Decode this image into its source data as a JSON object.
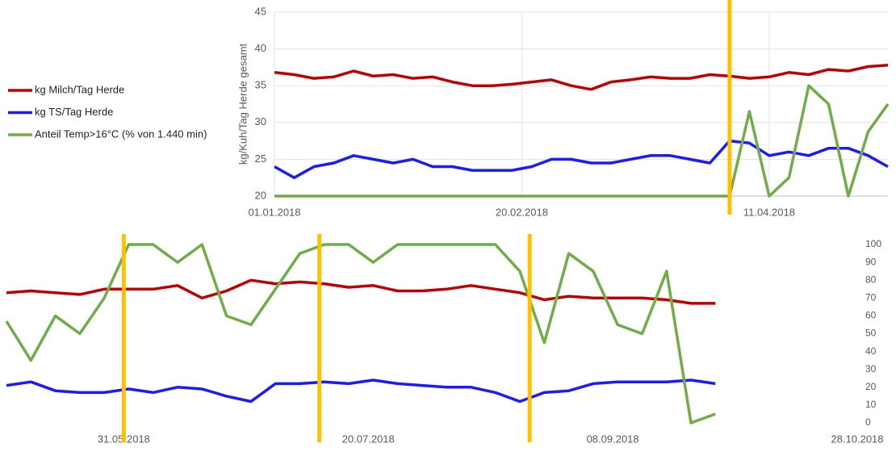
{
  "chart_data": [
    {
      "type": "line",
      "y_label": "kg/Kuh/Tag Herde gesamt",
      "x": [
        "01.01.2018",
        "05.01.2018",
        "09.01.2018",
        "13.01.2018",
        "17.01.2018",
        "21.01.2018",
        "25.01.2018",
        "29.01.2018",
        "02.02.2018",
        "06.02.2018",
        "10.02.2018",
        "14.02.2018",
        "18.02.2018",
        "22.02.2018",
        "26.02.2018",
        "02.03.2018",
        "06.03.2018",
        "10.03.2018",
        "14.03.2018",
        "18.03.2018",
        "22.03.2018",
        "26.03.2018",
        "30.03.2018",
        "03.04.2018",
        "07.04.2018",
        "11.04.2018",
        "15.04.2018",
        "19.04.2018",
        "23.04.2018",
        "27.04.2018",
        "01.05.2018",
        "05.05.2018"
      ],
      "series": [
        {
          "name": "kg Milch/Tag Herde",
          "color": "#c00000",
          "values": [
            36.8,
            36.5,
            36.0,
            36.2,
            37.0,
            36.3,
            36.5,
            36.0,
            36.2,
            35.5,
            35.0,
            35.0,
            35.2,
            35.5,
            35.8,
            35.0,
            34.5,
            35.5,
            35.8,
            36.2,
            36.0,
            36.0,
            36.5,
            36.3,
            36.0,
            36.2,
            36.8,
            36.5,
            37.2,
            37.0,
            37.6,
            37.8
          ]
        },
        {
          "name": "kg TS/Tag Herde",
          "color": "#1a1aff",
          "values": [
            24,
            22.5,
            24,
            24.5,
            25.5,
            25,
            24.5,
            25,
            24,
            24,
            23.5,
            23.5,
            23.5,
            24,
            25,
            25,
            24.5,
            24.5,
            25,
            25.5,
            25.5,
            25,
            24.5,
            27.5,
            27.2,
            25.5,
            26,
            25.5,
            26.5,
            26.5,
            25.5,
            24
          ]
        },
        {
          "name": "Anteil Temp>16°C (% von 1.440 min)",
          "color": "#70ad47",
          "axis": "y2",
          "values": [
            0,
            0,
            0,
            0,
            0,
            0,
            0,
            0,
            0,
            0,
            0,
            0,
            0,
            0,
            0,
            0,
            0,
            0,
            0,
            0,
            0,
            0,
            0,
            0,
            46,
            0,
            10,
            60,
            50,
            0,
            35,
            50
          ]
        }
      ],
      "xlim": [
        "01.01.2018",
        "05.05.2018"
      ],
      "xticks": [
        "01.01.2018",
        "20.02.2018",
        "11.04.2018"
      ],
      "ylim": [
        20,
        45
      ],
      "yticks": [
        20,
        25,
        30,
        35,
        40,
        45
      ],
      "y2lim": [
        0,
        100
      ],
      "grid": true,
      "legend": "left",
      "markers": [
        "03.04.2018"
      ],
      "marker_color": "#ffc000"
    },
    {
      "type": "line",
      "x": [
        "07.05.2018",
        "12.05.2018",
        "17.05.2018",
        "22.05.2018",
        "27.05.2018",
        "01.06.2018",
        "06.06.2018",
        "11.06.2018",
        "16.06.2018",
        "21.06.2018",
        "26.06.2018",
        "01.07.2018",
        "06.07.2018",
        "11.07.2018",
        "16.07.2018",
        "21.07.2018",
        "26.07.2018",
        "31.07.2018",
        "05.08.2018",
        "10.08.2018",
        "15.08.2018",
        "20.08.2018",
        "25.08.2018",
        "30.08.2018",
        "04.09.2018",
        "09.09.2018",
        "14.09.2018",
        "19.09.2018",
        "24.09.2018",
        "29.09.2018"
      ],
      "series": [
        {
          "color": "#c00000",
          "values": [
            73,
            74,
            73,
            72,
            75,
            75,
            75,
            77,
            70,
            74,
            80,
            78,
            79,
            78,
            76,
            77,
            74,
            74,
            75,
            77,
            75,
            73,
            69,
            71,
            70,
            70,
            70,
            69,
            67,
            67
          ]
        },
        {
          "color": "#1a1aff",
          "values": [
            21,
            23,
            18,
            17,
            17,
            19,
            17,
            20,
            19,
            15,
            12,
            22,
            22,
            23,
            22,
            24,
            22,
            21,
            20,
            20,
            17,
            12,
            17,
            18,
            22,
            23,
            23,
            23,
            24,
            22
          ]
        },
        {
          "color": "#70ad47",
          "values": [
            57,
            35,
            60,
            50,
            70,
            100,
            100,
            90,
            100,
            60,
            55,
            75,
            95,
            100,
            100,
            90,
            100,
            100,
            100,
            100,
            100,
            85,
            45,
            95,
            85,
            55,
            50,
            85,
            0,
            5
          ]
        }
      ],
      "xlim": [
        "07.05.2018",
        "28.10.2018"
      ],
      "xticks": [
        "31.05.2018",
        "20.07.2018",
        "08.09.2018",
        "28.10.2018"
      ],
      "ylim": [
        0,
        100
      ],
      "yticks": [
        0,
        10,
        20,
        30,
        40,
        50,
        60,
        70,
        80,
        90,
        100
      ],
      "grid": false,
      "markers": [
        "31.05.2018",
        "10.07.2018",
        "22.08.2018"
      ],
      "marker_color": "#ffc000"
    }
  ]
}
